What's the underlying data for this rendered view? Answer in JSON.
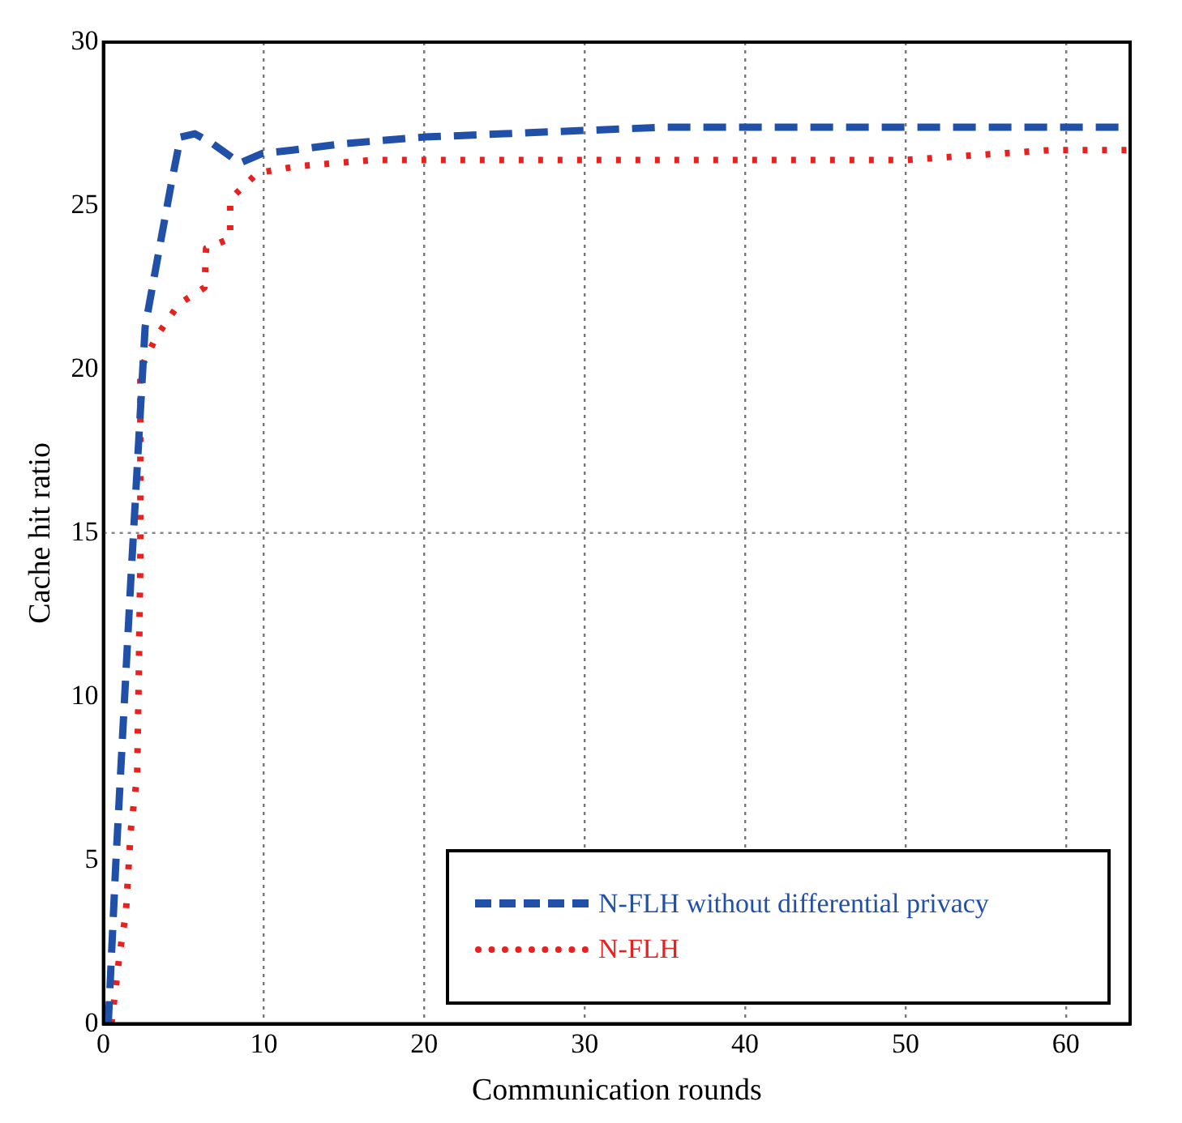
{
  "chart_data": {
    "type": "line",
    "xlabel": "Communication rounds",
    "ylabel": "Cache hit ratio",
    "xlim": [
      0,
      64
    ],
    "xticks": [
      0,
      10,
      20,
      30,
      40,
      50,
      60
    ],
    "ylim": [
      0,
      30
    ],
    "yticks": [
      0,
      5,
      10,
      15,
      20,
      25,
      30
    ],
    "grid": "x",
    "legend": "bottom right",
    "marker": "none",
    "ref_lines": [
      {
        "axis": "y",
        "value": 15,
        "line_style": "dotted",
        "color": "#888888"
      }
    ],
    "series": [
      {
        "name": "N-FLH without differential privacy",
        "color": "#2150a8",
        "line_style": "dashed",
        "x": [
          0.3,
          0.75,
          1.7,
          2.6,
          3.6,
          4.2,
          4.8,
          5.7,
          6.8,
          8.5,
          9.9,
          11.8,
          15,
          20,
          25,
          29.9,
          35,
          40,
          50,
          60,
          64
        ],
        "values": [
          0,
          4.7,
          13.5,
          21.3,
          24,
          25.6,
          27.1,
          27.2,
          26.9,
          26.3,
          26.6,
          26.7,
          26.9,
          27.1,
          27.2,
          27.3,
          27.4,
          27.4,
          27.4,
          27.4,
          27.4
        ]
      },
      {
        "name": "N-FLH",
        "color": "#e8201e",
        "line_style": "dotted",
        "x": [
          0.5,
          1,
          1.4,
          1.7,
          2.1,
          2.2,
          2.3,
          2.3,
          2.3,
          3.3,
          4.7,
          6.3,
          6.4,
          7.9,
          7.9,
          9.6,
          12,
          16.9,
          20,
          30,
          40,
          50,
          59,
          64
        ],
        "values": [
          0,
          2.1,
          3.4,
          5.9,
          7.6,
          10.6,
          14.1,
          17.6,
          20,
          21,
          22,
          22.5,
          23.7,
          24,
          25.2,
          26,
          26.2,
          26.4,
          26.4,
          26.4,
          26.4,
          26.4,
          26.7,
          26.7
        ]
      }
    ]
  }
}
